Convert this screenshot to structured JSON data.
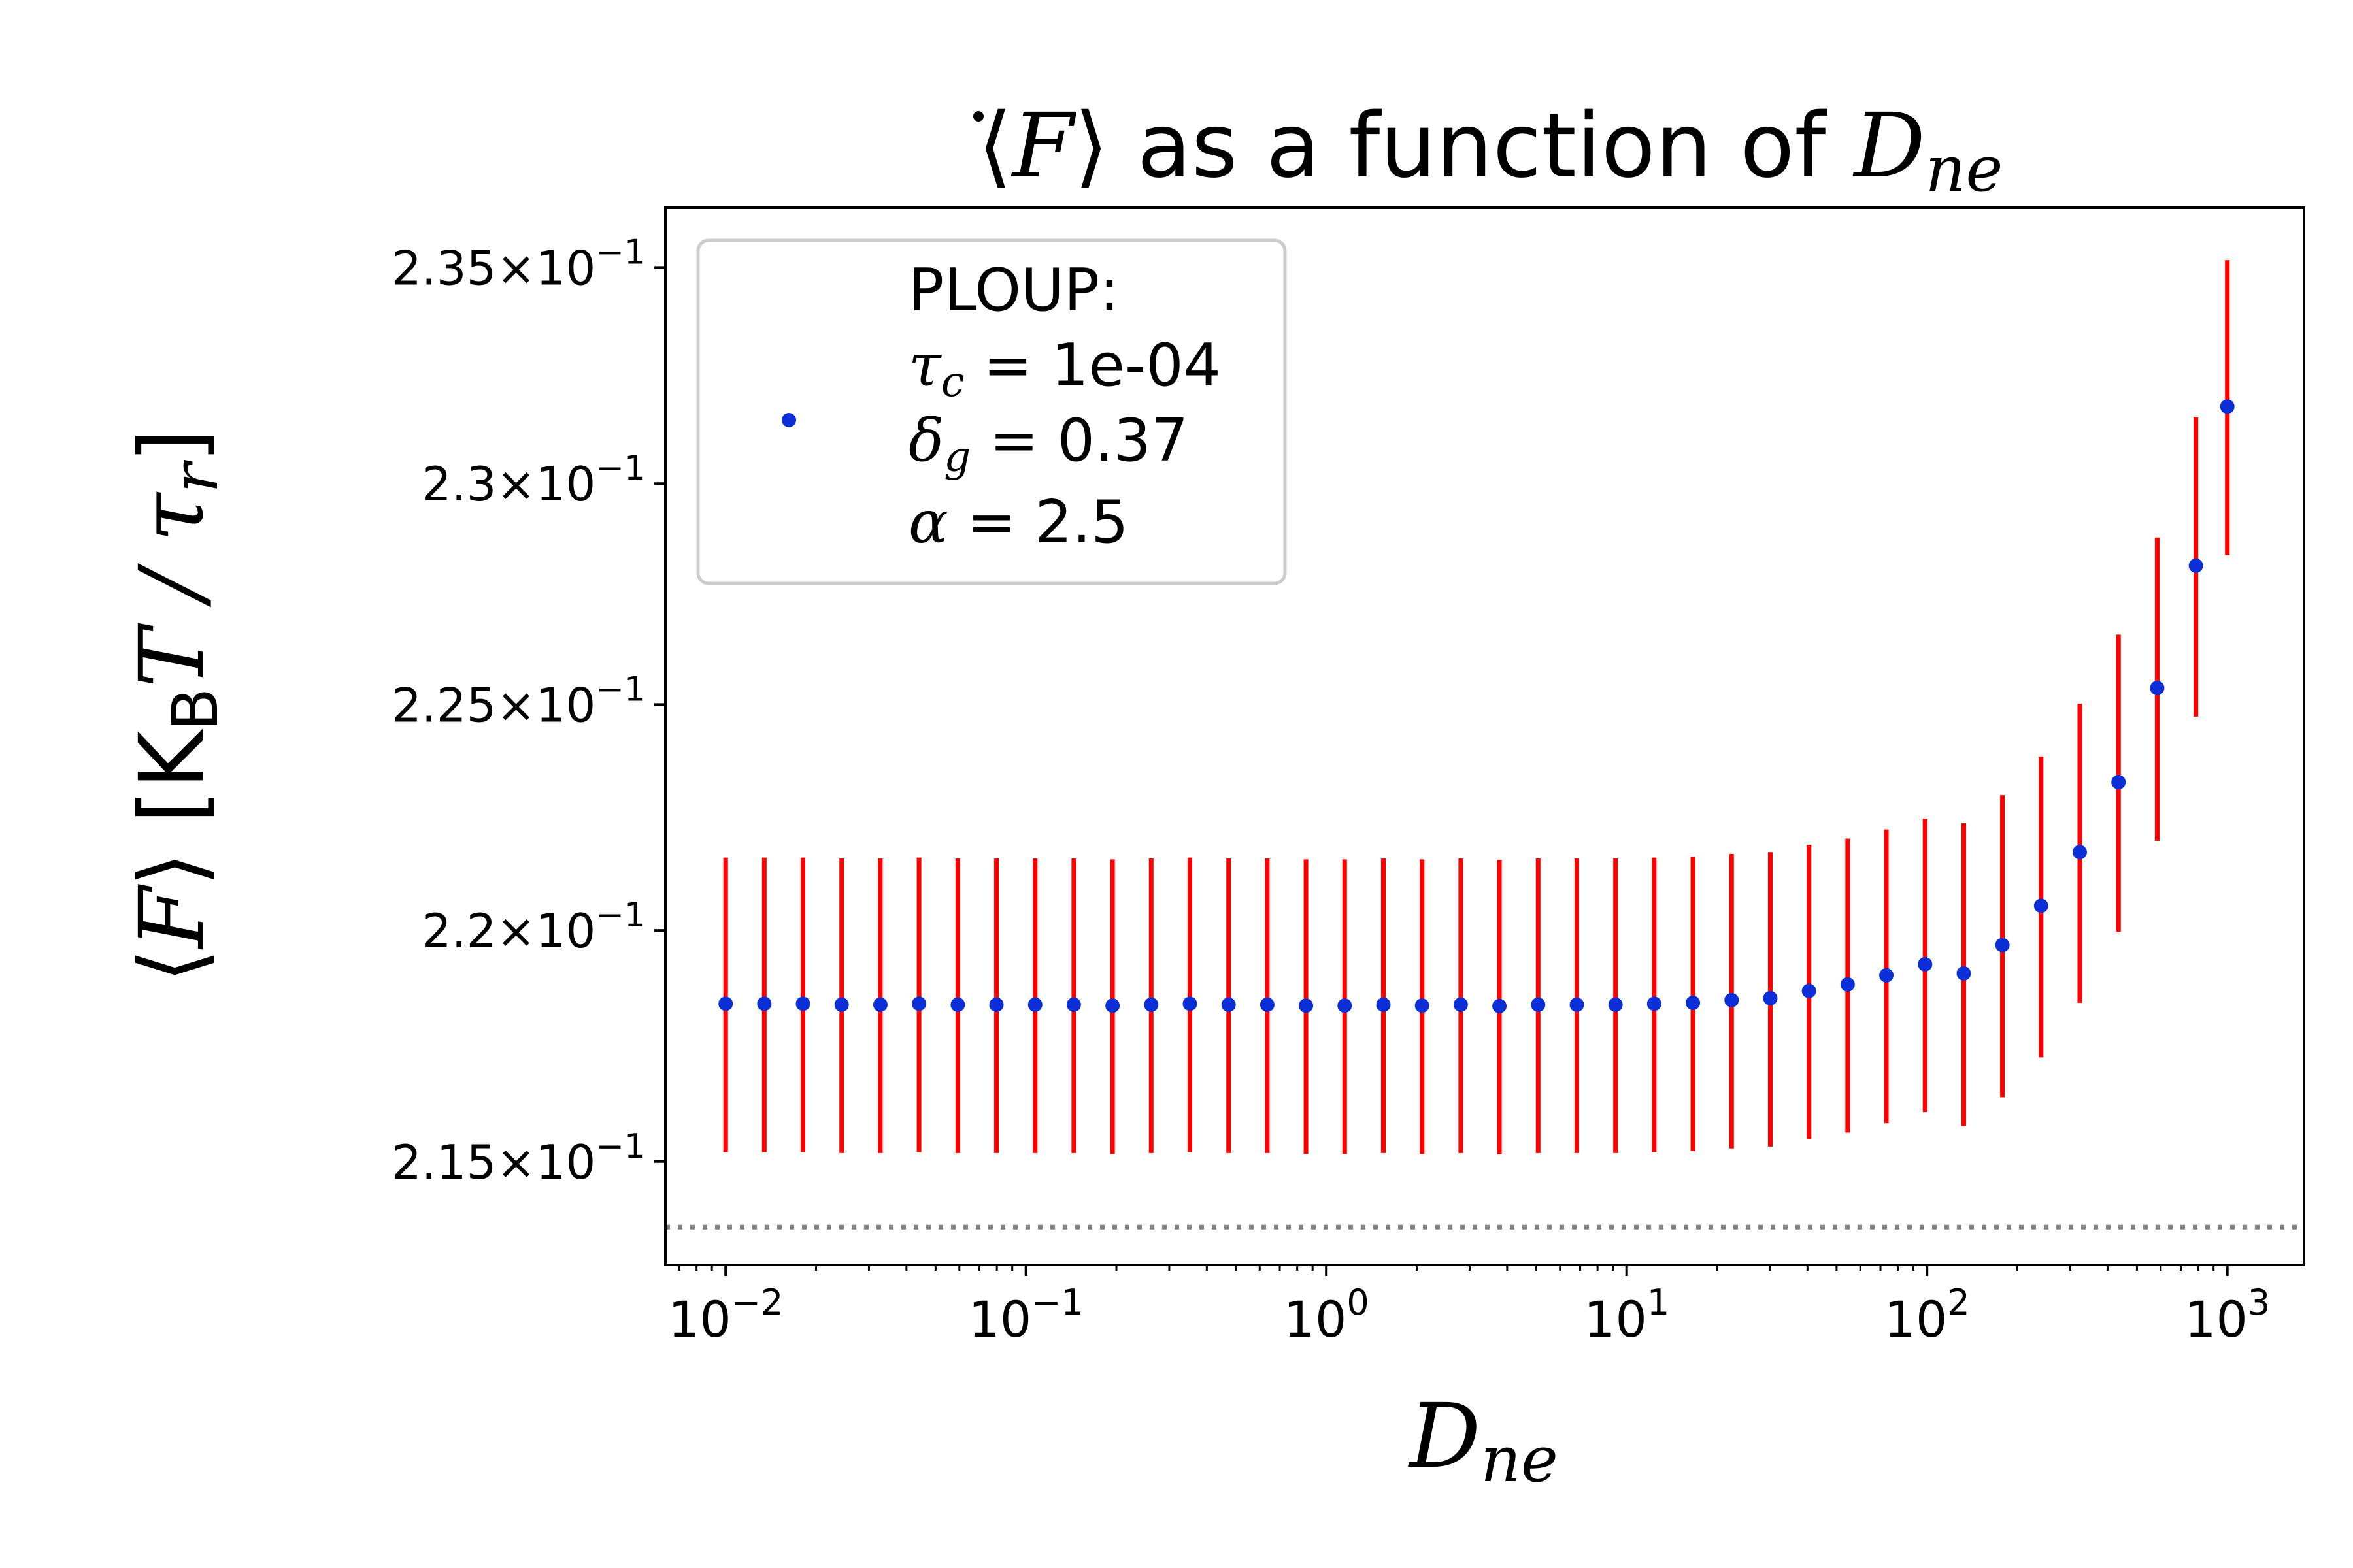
{
  "chart_data": {
    "type": "scatter",
    "title": "⟨Ḟ⟩ as a function of D_ne",
    "title_parts": {
      "fdot": "F",
      "mid": " as a function of ",
      "d": "D",
      "sub": "ne"
    },
    "xlabel": "D_ne",
    "xlabel_parts": {
      "d": "D",
      "sub": "ne"
    },
    "ylabel": "⟨Ḟ⟩   [K_B T / τ_r]",
    "ylabel_parts": {
      "fdot": "F",
      "units_open": "[K",
      "units_sub": "B",
      "units_mid": "T / τ",
      "units_sub2": "r",
      "units_close": "]"
    },
    "x_scale": "log",
    "y_scale": "log",
    "xlim": [
      0.0063,
      1800
    ],
    "ylim": [
      0.2128,
      0.2364
    ],
    "x_ticks": [
      {
        "value": 0.01,
        "base": "10",
        "exp": "−2"
      },
      {
        "value": 0.1,
        "base": "10",
        "exp": "−1"
      },
      {
        "value": 1,
        "base": "10",
        "exp": "0"
      },
      {
        "value": 10,
        "base": "10",
        "exp": "1"
      },
      {
        "value": 100,
        "base": "10",
        "exp": "2"
      },
      {
        "value": 1000,
        "base": "10",
        "exp": "3"
      }
    ],
    "y_ticks": [
      {
        "value": 0.215,
        "mant": "2.15",
        "exp": "−1"
      },
      {
        "value": 0.22,
        "mant": "2.2",
        "exp": "−1"
      },
      {
        "value": 0.225,
        "mant": "2.25",
        "exp": "−1"
      },
      {
        "value": 0.23,
        "mant": "2.3",
        "exp": "−1"
      },
      {
        "value": 0.235,
        "mant": "2.35",
        "exp": "−1"
      }
    ],
    "reference_line": {
      "y": 0.2136,
      "style": "dotted",
      "color": "#808080"
    },
    "legend": {
      "position": "upper-left",
      "line1": "PLOUP:",
      "line2_sym": "τ",
      "line2_sub": "c",
      "line2_val": " = 1e-04",
      "line3_sym": "δ",
      "line3_sub": "g",
      "line3_val": " = 0.37",
      "line4_sym": "α",
      "line4_val": " = 2.5"
    },
    "colors": {
      "marker": "#0b2ed6",
      "errorbar": "#ff0000"
    },
    "series": [
      {
        "x": [
          0.01,
          0.01345,
          0.01809,
          0.02434,
          0.03275,
          0.04406,
          0.05928,
          0.07975,
          0.1073,
          0.1443,
          0.1942,
          0.2612,
          0.3514,
          0.4728,
          0.6361,
          0.8557,
          1.151,
          1.549,
          2.084,
          2.803,
          3.771,
          5.074,
          6.826,
          9.183,
          12.35,
          16.62,
          22.36,
          30.08,
          40.47,
          54.44,
          73.24,
          98.54,
          132.6,
          178.3,
          239.9,
          322.7,
          434.2,
          584.2,
          785.9,
          1000
        ],
        "y": [
          0.2184,
          0.2184,
          0.2184,
          0.21838,
          0.21838,
          0.2184,
          0.21838,
          0.21838,
          0.21838,
          0.21838,
          0.21836,
          0.21838,
          0.2184,
          0.21838,
          0.21838,
          0.21836,
          0.21836,
          0.21838,
          0.21836,
          0.21838,
          0.21835,
          0.21838,
          0.21838,
          0.21838,
          0.2184,
          0.21842,
          0.21848,
          0.21852,
          0.21868,
          0.21882,
          0.21902,
          0.21926,
          0.21906,
          0.21968,
          0.22054,
          0.22172,
          0.22327,
          0.22537,
          0.22813,
          0.23177
        ],
        "yerr": [
          0.0032,
          0.0032,
          0.0032,
          0.0032,
          0.0032,
          0.0032,
          0.0032,
          0.0032,
          0.0032,
          0.0032,
          0.0032,
          0.0032,
          0.0032,
          0.0032,
          0.0032,
          0.0032,
          0.0032,
          0.0032,
          0.0032,
          0.0032,
          0.0032,
          0.0032,
          0.0032,
          0.0032,
          0.0032,
          0.0032,
          0.0032,
          0.0032,
          0.0032,
          0.0032,
          0.0032,
          0.0032,
          0.0033,
          0.0033,
          0.0033,
          0.0033,
          0.0033,
          0.0034,
          0.0034,
          0.0034
        ]
      }
    ]
  }
}
